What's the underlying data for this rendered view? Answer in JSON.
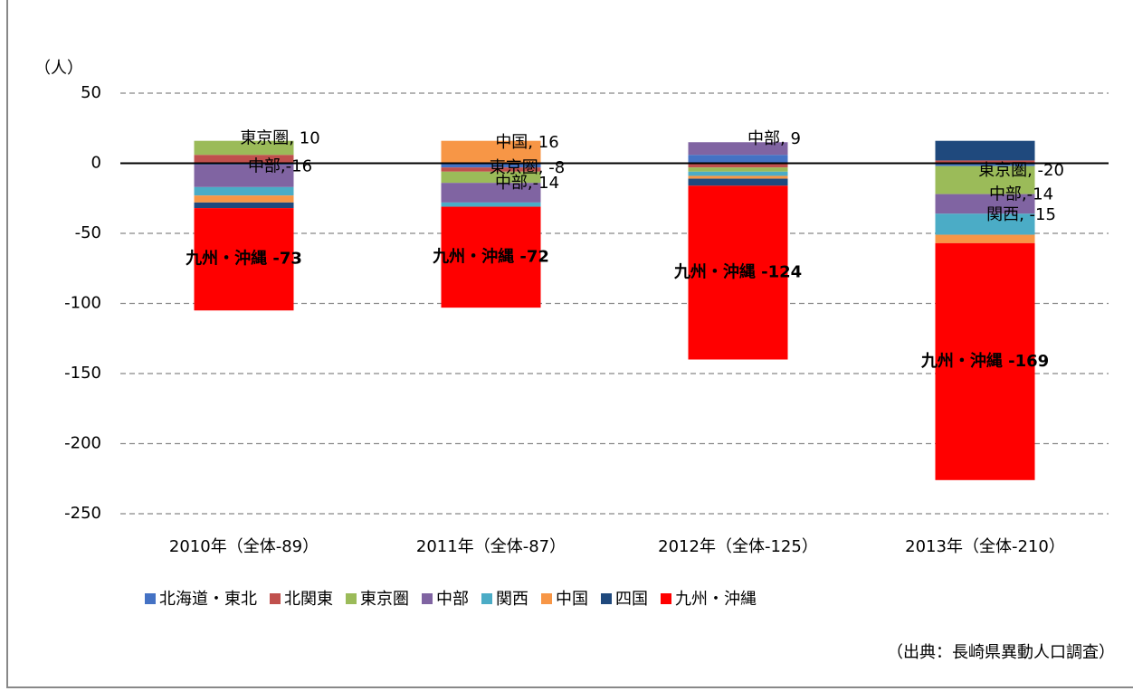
{
  "chart_data": {
    "type": "stacked_bar",
    "y_axis_label": "（人）",
    "source": "（出典：長崎県異動人口調査）",
    "categories": [
      "2010年（全体-89）",
      "2011年（全体-87）",
      "2012年（全体-125）",
      "2013年（全体-210）"
    ],
    "ylim": [
      -250,
      50
    ],
    "yticks": [
      -250,
      -200,
      -150,
      -100,
      -50,
      0,
      50
    ],
    "negative_tick_color": "#ff0000",
    "grid": true,
    "legend": "bottom",
    "series": [
      {
        "name": "北海道・東北",
        "color": "#4472c4",
        "values": [
          -1,
          -3,
          6,
          -2
        ],
        "value_labels": [
          null,
          null,
          null,
          null
        ]
      },
      {
        "name": "北関東",
        "color": "#c0504d",
        "values": [
          6,
          -3,
          -3,
          2
        ],
        "value_labels": [
          null,
          null,
          null,
          null
        ]
      },
      {
        "name": "東京圏",
        "color": "#9bbb59",
        "values": [
          10,
          -8,
          -3,
          -20
        ],
        "value_labels": [
          "東京圏, 10",
          "東京圏, -8",
          null,
          "東京圏, -20"
        ]
      },
      {
        "name": "中部",
        "color": "#8064a2",
        "values": [
          -16,
          -14,
          9,
          -14
        ],
        "value_labels": [
          "中部,-16",
          "中部,-14",
          "中部, 9",
          "中部,-14"
        ]
      },
      {
        "name": "関西",
        "color": "#4bacc6",
        "values": [
          -6,
          -3,
          -3,
          -15
        ],
        "value_labels": [
          null,
          null,
          null,
          "関西, -15"
        ]
      },
      {
        "name": "中国",
        "color": "#f79646",
        "values": [
          -5,
          16,
          -2,
          -6
        ],
        "value_labels": [
          null,
          "中国, 16",
          null,
          null
        ]
      },
      {
        "name": "四国",
        "color": "#1f497d",
        "values": [
          -4,
          0,
          -5,
          14
        ],
        "value_labels": [
          null,
          null,
          null,
          null
        ]
      },
      {
        "name": "九州・沖縄",
        "color": "#ff0000",
        "values": [
          -73,
          -72,
          -124,
          -169
        ],
        "value_labels": [
          "九州・沖縄 -73",
          "九州・沖縄 -72",
          "九州・沖縄 -124",
          "九州・沖縄 -169"
        ]
      }
    ]
  }
}
